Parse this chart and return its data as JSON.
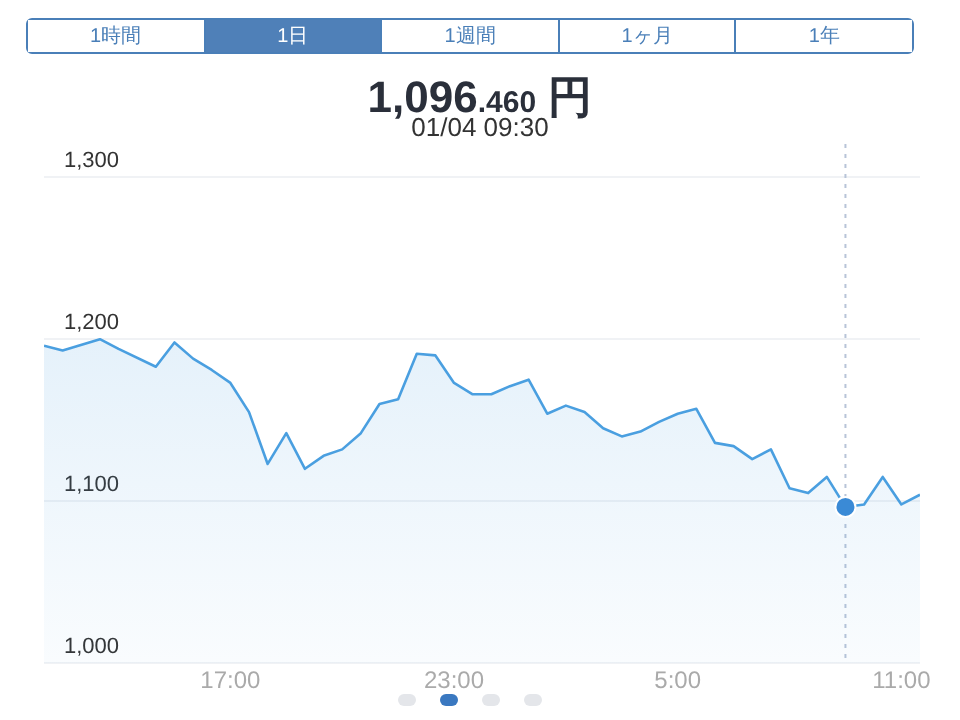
{
  "chart_data": {
    "type": "area",
    "title": "1,096.460 円",
    "subtitle": "01/04 09:30",
    "annotations": [
      "1時間",
      "1日",
      "1週間",
      "1ヶ月",
      "1年"
    ],
    "series": [
      {
        "color": "#4a9fe0",
        "x": [
          "--01-03T12:00",
          "--01-03T12:30",
          "--01-03T13:30",
          "--01-03T14:00",
          "--01-03T15:00",
          "--01-03T15:30",
          "--01-03T16:00",
          "--01-03T16:30",
          "--01-03T17:00",
          "--01-03T17:30",
          "--01-03T18:00",
          "--01-03T18:30",
          "--01-03T19:00",
          "--01-03T19:30",
          "--01-03T20:00",
          "--01-03T20:30",
          "--01-03T21:00",
          "--01-03T21:30",
          "--01-03T22:00",
          "--01-03T22:30",
          "--01-03T23:00",
          "--01-03T23:30",
          "--01-04T00:00",
          "--01-04T00:30",
          "--01-04T01:00",
          "--01-04T01:30",
          "--01-04T02:00",
          "--01-04T02:30",
          "--01-04T03:00",
          "--01-04T03:30",
          "--01-04T04:00",
          "--01-04T04:30",
          "--01-04T05:00",
          "--01-04T05:30",
          "--01-04T06:00",
          "--01-04T06:30",
          "--01-04T07:00",
          "--01-04T07:30",
          "--01-04T08:00",
          "--01-04T08:30",
          "--01-04T09:00",
          "--01-04T09:30",
          "--01-04T10:00",
          "--01-04T10:30",
          "--01-04T11:00",
          "--01-04T11:30"
        ],
        "values": [
          1196,
          1193,
          1200,
          1194,
          1183,
          1198,
          1188,
          1181,
          1173,
          1155,
          1123,
          1142,
          1120,
          1128,
          1132,
          1142,
          1160,
          1163,
          1191,
          1190,
          1173,
          1166,
          1166,
          1171,
          1175,
          1154,
          1159,
          1155,
          1145,
          1140,
          1143,
          1149,
          1154,
          1157,
          1136,
          1134,
          1126,
          1132,
          1108,
          1105,
          1115,
          1096.46,
          1098,
          1115,
          1098,
          1104
        ]
      },
      {
        "type": "scatter",
        "marker": "circle",
        "color": "#3a8ad6",
        "x": [
          "--01-04T09:30"
        ],
        "values": [
          1096.46
        ]
      }
    ],
    "xlim": [
      "--01-03T12:00",
      "--01-04T11:30"
    ],
    "xticks": [
      {
        "value": "--01-03T17:00",
        "label": "17:00"
      },
      {
        "value": "--01-03T23:00",
        "label": "23:00"
      },
      {
        "value": "--01-04T05:00",
        "label": "5:00"
      },
      {
        "value": "--01-04T11:00",
        "label": "11:00"
      }
    ],
    "ylim": [
      1000,
      1300
    ],
    "yticks": [
      {
        "value": 1000,
        "label": "1,000"
      },
      {
        "value": 1100,
        "label": "1,100"
      },
      {
        "value": 1200,
        "label": "1,200"
      },
      {
        "value": 1300,
        "label": "1,300"
      }
    ],
    "ref_lines": [
      {
        "axis": "x",
        "value": "--01-04T09:30",
        "color": "#b8c4d8",
        "line_style": "dotted"
      }
    ],
    "grid": "y",
    "legend": false,
    "line_style": "solid"
  }
}
